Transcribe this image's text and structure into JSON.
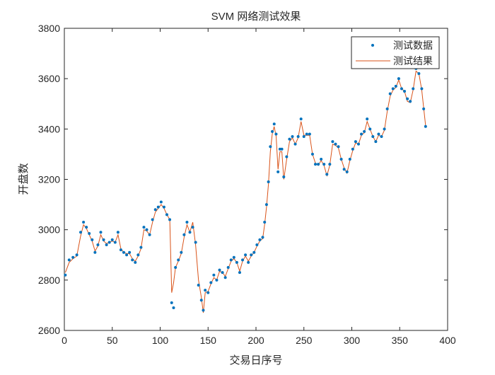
{
  "chart_data": {
    "type": "line",
    "title": "SVM 网络测试效果",
    "xlabel": "交易日序号",
    "ylabel": "开盘数",
    "xlim": [
      0,
      400
    ],
    "ylim": [
      2600,
      3800
    ],
    "xticks": [
      "0",
      "50",
      "100",
      "150",
      "200",
      "250",
      "300",
      "350",
      "400"
    ],
    "yticks": [
      "2600",
      "2800",
      "3000",
      "3200",
      "3400",
      "3600",
      "3800"
    ],
    "grid": false,
    "legend_position": "top-right",
    "x": [
      1,
      5,
      9,
      13,
      17,
      20,
      23,
      26,
      29,
      32,
      35,
      38,
      41,
      44,
      47,
      50,
      53,
      56,
      59,
      62,
      65,
      68,
      71,
      74,
      77,
      80,
      83,
      86,
      89,
      92,
      95,
      98,
      101,
      104,
      107,
      110,
      112,
      114,
      116,
      119,
      122,
      125,
      128,
      131,
      134,
      137,
      140,
      143,
      145,
      147,
      150,
      153,
      156,
      159,
      162,
      165,
      168,
      171,
      174,
      177,
      180,
      183,
      186,
      189,
      192,
      195,
      198,
      201,
      204,
      207,
      209,
      211,
      213,
      215,
      217,
      219,
      221,
      223,
      225,
      227,
      229,
      232,
      235,
      238,
      241,
      244,
      247,
      250,
      253,
      256,
      259,
      262,
      265,
      268,
      271,
      274,
      277,
      280,
      283,
      286,
      289,
      292,
      295,
      298,
      301,
      304,
      307,
      310,
      313,
      316,
      319,
      322,
      325,
      328,
      331,
      334,
      337,
      340,
      343,
      346,
      349,
      352,
      355,
      358,
      361,
      364,
      367,
      370,
      373,
      375,
      377
    ],
    "series": [
      {
        "name": "测试数据",
        "style": "points",
        "color": "#0072BD",
        "values": [
          2820,
          2880,
          2890,
          2900,
          2990,
          3030,
          3010,
          2985,
          2960,
          2910,
          2940,
          2990,
          2960,
          2940,
          2950,
          2960,
          2950,
          2990,
          2920,
          2910,
          2900,
          2910,
          2880,
          2870,
          2900,
          2930,
          3010,
          3000,
          2980,
          3040,
          3080,
          3090,
          3110,
          3090,
          3060,
          3040,
          2710,
          2690,
          2850,
          2880,
          2910,
          2980,
          3030,
          2990,
          3010,
          2950,
          2780,
          2720,
          2680,
          2760,
          2750,
          2790,
          2820,
          2800,
          2840,
          2830,
          2810,
          2850,
          2880,
          2890,
          2870,
          2830,
          2880,
          2900,
          2870,
          2900,
          2910,
          2940,
          2960,
          2970,
          3030,
          3100,
          3190,
          3330,
          3390,
          3420,
          3380,
          3230,
          3320,
          3320,
          3210,
          3290,
          3360,
          3370,
          3340,
          3370,
          3440,
          3370,
          3380,
          3380,
          3300,
          3260,
          3260,
          3280,
          3260,
          3220,
          3260,
          3350,
          3340,
          3330,
          3280,
          3240,
          3230,
          3280,
          3320,
          3350,
          3340,
          3380,
          3390,
          3440,
          3400,
          3370,
          3350,
          3380,
          3370,
          3400,
          3480,
          3540,
          3560,
          3570,
          3600,
          3560,
          3550,
          3520,
          3510,
          3560,
          3640,
          3620,
          3560,
          3480,
          3410
        ]
      },
      {
        "name": "测试结果",
        "style": "line",
        "color": "#D95319",
        "values": [
          2830,
          2870,
          2885,
          2895,
          2975,
          3020,
          3005,
          2980,
          2955,
          2915,
          2935,
          2980,
          2955,
          2945,
          2950,
          2955,
          2950,
          2980,
          2925,
          2910,
          2905,
          2905,
          2885,
          2875,
          2895,
          2925,
          3000,
          2995,
          2980,
          3030,
          3070,
          3085,
          3100,
          3085,
          3060,
          3040,
          2750,
          2790,
          2850,
          2875,
          2905,
          2970,
          3020,
          2990,
          3030,
          2940,
          2800,
          2730,
          2670,
          2750,
          2755,
          2785,
          2810,
          2800,
          2835,
          2830,
          2815,
          2845,
          2875,
          2885,
          2870,
          2835,
          2875,
          2895,
          2875,
          2895,
          2910,
          2935,
          2955,
          2965,
          3020,
          3090,
          3180,
          3310,
          3380,
          3410,
          3370,
          3240,
          3310,
          3310,
          3200,
          3280,
          3350,
          3365,
          3340,
          3365,
          3430,
          3375,
          3375,
          3375,
          3300,
          3265,
          3255,
          3275,
          3255,
          3215,
          3255,
          3340,
          3335,
          3325,
          3280,
          3245,
          3225,
          3275,
          3315,
          3345,
          3340,
          3375,
          3385,
          3430,
          3400,
          3370,
          3350,
          3375,
          3370,
          3395,
          3470,
          3530,
          3555,
          3565,
          3595,
          3560,
          3550,
          3510,
          3505,
          3555,
          3630,
          3620,
          3555,
          3485,
          3415
        ]
      }
    ]
  }
}
